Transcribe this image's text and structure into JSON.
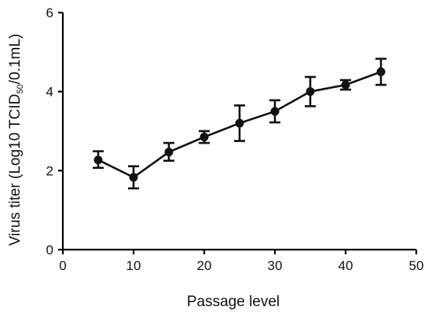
{
  "chart_data": {
    "type": "line",
    "xlabel": "Passage level",
    "ylabel_parts": [
      "Virus titer (Log10 TCID",
      "50",
      "/0.1mL)"
    ],
    "xlim": [
      0,
      50
    ],
    "ylim": [
      0,
      6
    ],
    "xticks": [
      0,
      10,
      20,
      30,
      40,
      50
    ],
    "yticks": [
      0,
      2,
      4,
      6
    ],
    "grid": false,
    "series": [
      {
        "x": [
          5,
          10,
          15,
          20,
          25,
          30,
          35,
          40,
          45
        ],
        "y": [
          2.27,
          1.83,
          2.47,
          2.85,
          3.2,
          3.5,
          4.0,
          4.17,
          4.5
        ],
        "err_low": [
          0.2,
          0.28,
          0.22,
          0.15,
          0.45,
          0.28,
          0.37,
          0.12,
          0.33
        ],
        "err_high": [
          0.22,
          0.28,
          0.23,
          0.15,
          0.45,
          0.28,
          0.37,
          0.12,
          0.33
        ]
      }
    ],
    "color": "#111111"
  }
}
